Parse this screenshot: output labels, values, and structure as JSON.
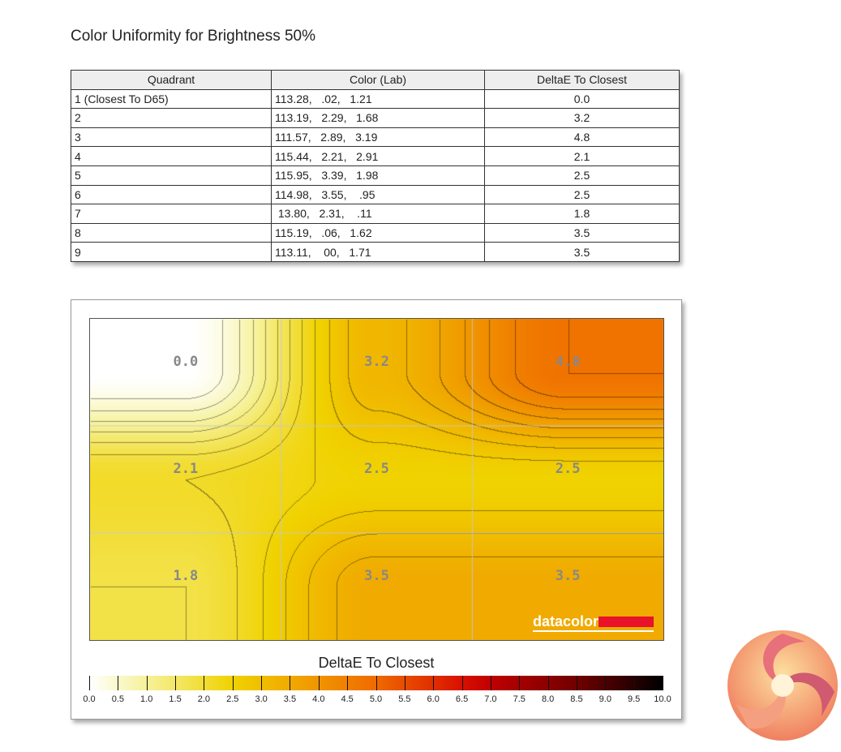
{
  "title": "Color Uniformity for Brightness 50%",
  "table": {
    "headers": [
      "Quadrant",
      "Color (Lab)",
      "DeltaE To Closest"
    ],
    "rows": [
      [
        "1 (Closest To D65)",
        "113.28,   .02,   1.21",
        "0.0"
      ],
      [
        "2",
        "113.19,   2.29,   1.68",
        "3.2"
      ],
      [
        "3",
        "111.57,   2.89,   3.19",
        "4.8"
      ],
      [
        "4",
        "115.44,   2.21,   2.91",
        "2.1"
      ],
      [
        "5",
        "115.95,   3.39,   1.98",
        "2.5"
      ],
      [
        "6",
        "114.98,   3.55,    .95",
        "2.5"
      ],
      [
        "7",
        " 13.80,   2.31,    .11",
        "1.8"
      ],
      [
        "8",
        "115.19,   .06,   1.62",
        "3.5"
      ],
      [
        "9",
        "113.11,    00,   1.71",
        "3.5"
      ]
    ]
  },
  "chart_data": {
    "type": "heatmap",
    "rows": 3,
    "cols": 3,
    "values": [
      [
        0.0,
        3.2,
        4.8
      ],
      [
        2.1,
        2.5,
        2.5
      ],
      [
        1.8,
        3.5,
        3.5
      ]
    ],
    "labels": [
      "0.0",
      "3.2",
      "4.8",
      "2.1",
      "2.5",
      "2.5",
      "1.8",
      "3.5",
      "3.5"
    ],
    "legend_title": "DeltaE To Closest",
    "scale_range": [
      0,
      10
    ],
    "scale_ticks": [
      "0.0",
      "0.5",
      "1.0",
      "1.5",
      "2.0",
      "2.5",
      "3.0",
      "3.5",
      "4.0",
      "4.5",
      "5.0",
      "5.5",
      "6.0",
      "6.5",
      "7.0",
      "7.5",
      "8.0",
      "8.5",
      "9.0",
      "9.5",
      "10.0"
    ],
    "color_stops": [
      [
        0,
        "#ffffff"
      ],
      [
        1,
        "#f6f29a"
      ],
      [
        2.5,
        "#f0d200"
      ],
      [
        3.5,
        "#f0aa00"
      ],
      [
        5,
        "#f06a00"
      ],
      [
        6.5,
        "#d81000"
      ],
      [
        7,
        "#c00000"
      ],
      [
        8.5,
        "#700000"
      ],
      [
        10,
        "#000000"
      ]
    ],
    "grid": true
  },
  "brand": "datacolor",
  "brand_color": "#e8132b"
}
